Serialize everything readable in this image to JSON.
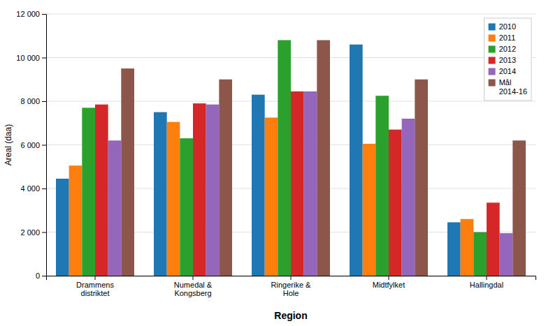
{
  "chart_data": {
    "type": "bar",
    "xlabel": "Region",
    "ylabel": "Areal (daa)",
    "categories": [
      "Drammens\ndistriktet",
      "Numedal &\nKongsberg",
      "Ringerike &\nHole",
      "Midtfylket",
      "Hallingdal"
    ],
    "series": [
      {
        "name": "2010",
        "values": [
          4450,
          7500,
          8300,
          10600,
          2450
        ]
      },
      {
        "name": "2011",
        "values": [
          5050,
          7050,
          7250,
          6050,
          2600
        ]
      },
      {
        "name": "2012",
        "values": [
          7700,
          6300,
          10800,
          8250,
          2000
        ]
      },
      {
        "name": "2013",
        "values": [
          7850,
          7900,
          8450,
          6700,
          3350
        ]
      },
      {
        "name": "2014",
        "values": [
          6200,
          7850,
          8450,
          7200,
          1950
        ]
      },
      {
        "name": "Mål\n2014-16",
        "values": [
          9500,
          9000,
          10800,
          9000,
          6200
        ]
      }
    ],
    "ylim": [
      0,
      12000
    ],
    "yticks": [
      0,
      {
        "value": 2000,
        "label": "2 000"
      },
      {
        "value": 4000,
        "label": "4 000"
      },
      {
        "value": 6000,
        "label": "6 000"
      },
      {
        "value": 8000,
        "label": "8 000"
      },
      {
        "value": 10000,
        "label": "10 000"
      },
      {
        "value": 12000,
        "label": "12 000"
      }
    ],
    "grid": true,
    "legend": "upper right"
  }
}
